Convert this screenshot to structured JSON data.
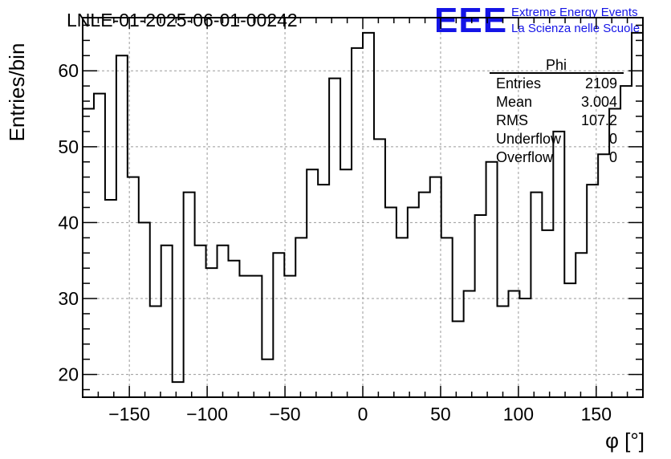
{
  "chart_data": {
    "type": "histogram",
    "title": "LNLE-01-2025-06-01-00242",
    "xlabel": "φ [°]",
    "ylabel": "Entries/bin",
    "xlim": [
      -180,
      180
    ],
    "ylim": [
      17,
      67
    ],
    "bin_width": 7.2,
    "x_ticks": [
      -150,
      -100,
      -50,
      0,
      50,
      100,
      150
    ],
    "x_tick_labels": [
      "−150",
      "−100",
      "−50",
      "0",
      "50",
      "100",
      "150"
    ],
    "y_ticks": [
      20,
      30,
      40,
      50,
      60
    ],
    "y_tick_labels": [
      "20",
      "30",
      "40",
      "50",
      "60"
    ],
    "grid": true,
    "values": [
      55,
      57,
      43,
      62,
      46,
      40,
      29,
      37,
      19,
      44,
      37,
      34,
      37,
      35,
      33,
      33,
      22,
      36,
      33,
      38,
      47,
      45,
      59,
      47,
      63,
      65,
      51,
      42,
      38,
      42,
      44,
      46,
      38,
      27,
      31,
      41,
      48,
      29,
      31,
      30,
      44,
      39,
      52,
      32,
      36,
      45,
      49,
      55,
      58,
      65
    ],
    "stats": {
      "name": "Phi",
      "rows": [
        {
          "label": "Entries",
          "value": "2109"
        },
        {
          "label": "Mean",
          "value": "3.004"
        },
        {
          "label": "RMS",
          "value": "107.2"
        },
        {
          "label": "Underflow",
          "value": "0"
        },
        {
          "label": "Overflow",
          "value": "0"
        }
      ]
    }
  },
  "logo": {
    "mark": "EEE",
    "line1": "Extreme Energy Events",
    "line2": "La Scienza nelle Scuole",
    "color": "#1414e6"
  }
}
